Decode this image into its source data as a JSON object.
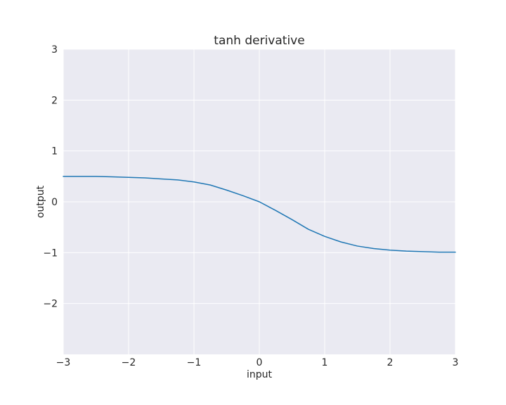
{
  "chart_data": {
    "type": "line",
    "title": "tanh derivative",
    "xlabel": "input",
    "ylabel": "output",
    "xlim": [
      -3,
      3
    ],
    "ylim": [
      -3,
      3
    ],
    "xticks": [
      -3,
      -2,
      -1,
      0,
      1,
      2,
      3
    ],
    "xtick_labels": [
      "−3",
      "−2",
      "−1",
      "0",
      "1",
      "2",
      "3"
    ],
    "yticks": [
      -2,
      -1,
      0,
      1,
      2,
      3
    ],
    "ytick_labels": [
      "−2",
      "−1",
      "0",
      "1",
      "2",
      "3"
    ],
    "grid": true,
    "background_color": "#EAEAF2",
    "grid_color": "#FFFFFF",
    "series": [
      {
        "color": "#1F77B4",
        "x": [
          -3.0,
          -2.75,
          -2.5,
          -2.25,
          -2.0,
          -1.75,
          -1.5,
          -1.25,
          -1.0,
          -0.75,
          -0.5,
          -0.25,
          0.0,
          0.25,
          0.5,
          0.75,
          1.0,
          1.25,
          1.5,
          1.75,
          2.0,
          2.25,
          2.5,
          2.75,
          3.0
        ],
        "y": [
          0.5,
          0.5,
          0.5,
          0.49,
          0.48,
          0.47,
          0.45,
          0.43,
          0.39,
          0.33,
          0.23,
          0.12,
          0.0,
          -0.17,
          -0.35,
          -0.54,
          -0.68,
          -0.79,
          -0.87,
          -0.92,
          -0.95,
          -0.97,
          -0.98,
          -0.99,
          -0.99
        ]
      }
    ]
  }
}
